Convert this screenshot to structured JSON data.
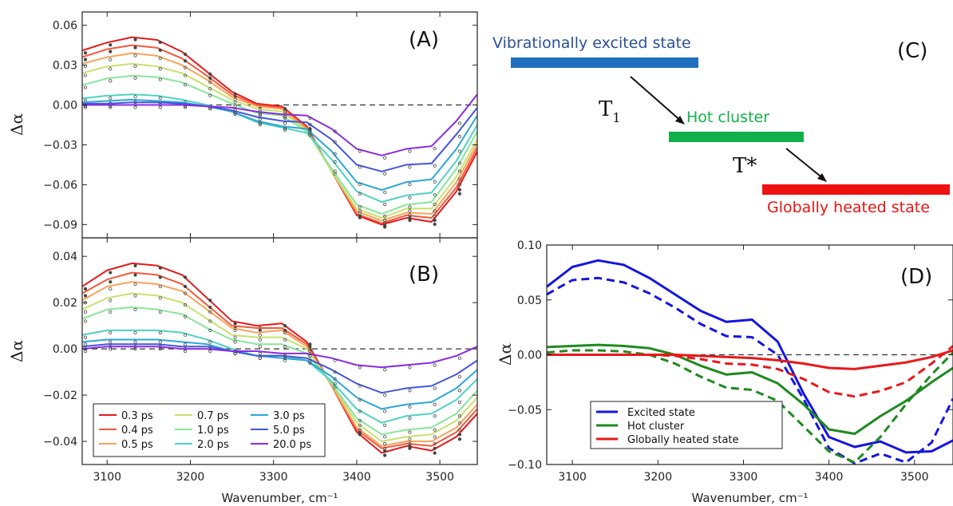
{
  "chart_data": [
    {
      "type": "line",
      "panel_label": "(A)",
      "xlabel": "",
      "ylabel": "Δα",
      "xlim": [
        3070,
        3545
      ],
      "ylim": [
        -0.1,
        0.07
      ],
      "xticks": [
        3100,
        3200,
        3300,
        3400,
        3500
      ],
      "yticks": [
        0.06,
        0.03,
        0.0,
        -0.03,
        -0.06,
        -0.09
      ],
      "ytick_labels": [
        "0.06",
        "0.03",
        "0.00",
        "−0.03",
        "−0.06",
        "−0.09"
      ],
      "x": [
        3070,
        3100,
        3130,
        3160,
        3190,
        3220,
        3250,
        3280,
        3310,
        3340,
        3370,
        3400,
        3430,
        3460,
        3490,
        3520,
        3545
      ],
      "series": [
        {
          "name": "0.3 ps",
          "color": "#e41a1c",
          "values": [
            0.041,
            0.047,
            0.051,
            0.049,
            0.04,
            0.025,
            0.01,
            0.001,
            -0.001,
            -0.016,
            -0.05,
            -0.083,
            -0.09,
            -0.085,
            -0.088,
            -0.065,
            -0.035
          ]
        },
        {
          "name": "0.4 ps",
          "color": "#f4583a",
          "values": [
            0.036,
            0.042,
            0.045,
            0.043,
            0.035,
            0.022,
            0.008,
            0.0,
            -0.002,
            -0.017,
            -0.05,
            -0.082,
            -0.089,
            -0.083,
            -0.085,
            -0.062,
            -0.032
          ]
        },
        {
          "name": "0.5 ps",
          "color": "#f9a35a",
          "values": [
            0.031,
            0.036,
            0.039,
            0.037,
            0.03,
            0.019,
            0.006,
            -0.001,
            -0.003,
            -0.018,
            -0.05,
            -0.08,
            -0.087,
            -0.081,
            -0.082,
            -0.058,
            -0.029
          ]
        },
        {
          "name": "0.7 ps",
          "color": "#c9e06e",
          "values": [
            0.024,
            0.029,
            0.031,
            0.029,
            0.024,
            0.014,
            0.004,
            -0.003,
            -0.005,
            -0.019,
            -0.05,
            -0.078,
            -0.085,
            -0.078,
            -0.078,
            -0.054,
            -0.026
          ]
        },
        {
          "name": "1.0 ps",
          "color": "#88e59a",
          "values": [
            0.015,
            0.02,
            0.022,
            0.021,
            0.017,
            0.009,
            0.001,
            -0.006,
            -0.008,
            -0.02,
            -0.048,
            -0.075,
            -0.082,
            -0.075,
            -0.073,
            -0.048,
            -0.02
          ]
        },
        {
          "name": "2.0 ps",
          "color": "#4fd1c3",
          "values": [
            0.005,
            0.007,
            0.008,
            0.007,
            0.004,
            0.0,
            -0.005,
            -0.013,
            -0.017,
            -0.021,
            -0.041,
            -0.065,
            -0.073,
            -0.068,
            -0.066,
            -0.042,
            -0.015
          ]
        },
        {
          "name": "3.0 ps",
          "color": "#2aa6d8",
          "values": [
            0.002,
            0.003,
            0.004,
            0.003,
            0.002,
            -0.001,
            -0.005,
            -0.012,
            -0.016,
            -0.018,
            -0.035,
            -0.058,
            -0.064,
            -0.058,
            -0.056,
            -0.033,
            -0.008
          ]
        },
        {
          "name": "5.0 ps",
          "color": "#4455dd",
          "values": [
            0.001,
            0.001,
            0.002,
            0.002,
            0.001,
            -0.001,
            -0.004,
            -0.009,
            -0.012,
            -0.013,
            -0.026,
            -0.045,
            -0.05,
            -0.045,
            -0.044,
            -0.022,
            -0.002
          ]
        },
        {
          "name": "20.0 ps",
          "color": "#8a2be2",
          "values": [
            0.0,
            0.0,
            0.0,
            0.0,
            0.0,
            -0.001,
            -0.002,
            -0.005,
            -0.007,
            -0.008,
            -0.018,
            -0.033,
            -0.038,
            -0.033,
            -0.031,
            -0.012,
            0.008
          ]
        }
      ]
    },
    {
      "type": "line",
      "panel_label": "(B)",
      "xlabel": "Wavenumber, cm⁻¹",
      "ylabel": "Δα",
      "xlim": [
        3070,
        3545
      ],
      "ylim": [
        -0.05,
        0.048
      ],
      "xticks": [
        3100,
        3200,
        3300,
        3400,
        3500
      ],
      "yticks": [
        0.04,
        0.02,
        0.0,
        -0.02,
        -0.04
      ],
      "ytick_labels": [
        "0.04",
        "0.02",
        "0.00",
        "−0.02",
        "−0.04"
      ],
      "x": [
        3070,
        3100,
        3130,
        3160,
        3190,
        3220,
        3250,
        3280,
        3310,
        3340,
        3370,
        3400,
        3430,
        3460,
        3490,
        3520,
        3545
      ],
      "series": [
        {
          "name": "0.3 ps",
          "color": "#e41a1c",
          "values": [
            0.027,
            0.034,
            0.037,
            0.036,
            0.032,
            0.022,
            0.012,
            0.01,
            0.011,
            0.003,
            -0.016,
            -0.036,
            -0.045,
            -0.042,
            -0.044,
            -0.038,
            -0.028
          ]
        },
        {
          "name": "0.4 ps",
          "color": "#f4583a",
          "values": [
            0.024,
            0.03,
            0.033,
            0.032,
            0.028,
            0.019,
            0.01,
            0.009,
            0.009,
            0.002,
            -0.016,
            -0.035,
            -0.043,
            -0.041,
            -0.042,
            -0.036,
            -0.026
          ]
        },
        {
          "name": "0.5 ps",
          "color": "#f9a35a",
          "values": [
            0.021,
            0.027,
            0.029,
            0.028,
            0.025,
            0.017,
            0.009,
            0.007,
            0.008,
            0.001,
            -0.016,
            -0.034,
            -0.042,
            -0.04,
            -0.04,
            -0.034,
            -0.024
          ]
        },
        {
          "name": "0.7 ps",
          "color": "#c9e06e",
          "values": [
            0.017,
            0.022,
            0.024,
            0.023,
            0.02,
            0.013,
            0.006,
            0.005,
            0.005,
            0.0,
            -0.015,
            -0.032,
            -0.04,
            -0.038,
            -0.037,
            -0.031,
            -0.021
          ]
        },
        {
          "name": "1.0 ps",
          "color": "#88e59a",
          "values": [
            0.013,
            0.017,
            0.018,
            0.017,
            0.015,
            0.009,
            0.004,
            0.002,
            0.002,
            -0.002,
            -0.015,
            -0.03,
            -0.037,
            -0.035,
            -0.034,
            -0.028,
            -0.018
          ]
        },
        {
          "name": "2.0 ps",
          "color": "#4fd1c3",
          "values": [
            0.006,
            0.008,
            0.008,
            0.008,
            0.007,
            0.004,
            0.0,
            -0.003,
            -0.003,
            -0.005,
            -0.014,
            -0.026,
            -0.032,
            -0.029,
            -0.028,
            -0.022,
            -0.013
          ]
        },
        {
          "name": "3.0 ps",
          "color": "#2aa6d8",
          "values": [
            0.003,
            0.004,
            0.004,
            0.004,
            0.003,
            0.002,
            -0.001,
            -0.003,
            -0.004,
            -0.005,
            -0.012,
            -0.021,
            -0.026,
            -0.024,
            -0.023,
            -0.017,
            -0.009
          ]
        },
        {
          "name": "5.0 ps",
          "color": "#4455dd",
          "values": [
            0.001,
            0.002,
            0.002,
            0.002,
            0.001,
            0.001,
            -0.001,
            -0.003,
            -0.003,
            -0.004,
            -0.009,
            -0.015,
            -0.019,
            -0.017,
            -0.016,
            -0.011,
            -0.005
          ]
        },
        {
          "name": "20.0 ps",
          "color": "#8a2be2",
          "values": [
            0.0,
            0.001,
            0.001,
            0.001,
            0.0,
            0.0,
            -0.001,
            -0.001,
            -0.002,
            -0.002,
            -0.004,
            -0.007,
            -0.008,
            -0.007,
            -0.006,
            -0.003,
            0.001
          ]
        }
      ],
      "legend": {
        "placement": "bottom-left",
        "columns": 3
      }
    },
    {
      "type": "line",
      "panel_label": "(D)",
      "xlabel": "Wavenumber, cm⁻¹",
      "ylabel": "Δα",
      "xlim": [
        3070,
        3545
      ],
      "ylim": [
        -0.1,
        0.1
      ],
      "xticks": [
        3100,
        3200,
        3300,
        3400,
        3500
      ],
      "yticks": [
        0.1,
        0.05,
        0.0,
        -0.05,
        -0.1
      ],
      "ytick_labels": [
        "0.10",
        "0.05",
        "0.00",
        "−0.05",
        "−0.10"
      ],
      "x": [
        3070,
        3100,
        3130,
        3160,
        3190,
        3220,
        3250,
        3280,
        3310,
        3340,
        3370,
        3400,
        3430,
        3460,
        3490,
        3520,
        3545
      ],
      "series": [
        {
          "name": "Excited state",
          "color": "#1515e0",
          "dash": false,
          "values": [
            0.062,
            0.08,
            0.086,
            0.082,
            0.07,
            0.055,
            0.04,
            0.03,
            0.032,
            0.012,
            -0.035,
            -0.075,
            -0.084,
            -0.079,
            -0.089,
            -0.088,
            -0.078
          ]
        },
        {
          "name": "",
          "color": "#1515e0",
          "dash": true,
          "values": [
            0.055,
            0.068,
            0.07,
            0.066,
            0.056,
            0.043,
            0.028,
            0.017,
            0.016,
            0.0,
            -0.04,
            -0.085,
            -0.099,
            -0.09,
            -0.098,
            -0.08,
            -0.04
          ]
        },
        {
          "name": "Hot cluster",
          "color": "#1e8a1e",
          "dash": false,
          "values": [
            0.007,
            0.008,
            0.009,
            0.008,
            0.006,
            0.0,
            -0.01,
            -0.018,
            -0.016,
            -0.026,
            -0.045,
            -0.068,
            -0.072,
            -0.056,
            -0.042,
            -0.025,
            -0.012
          ]
        },
        {
          "name": "",
          "color": "#1e8a1e",
          "dash": true,
          "values": [
            0.002,
            0.004,
            0.004,
            0.003,
            0.0,
            -0.008,
            -0.02,
            -0.03,
            -0.032,
            -0.042,
            -0.065,
            -0.088,
            -0.098,
            -0.075,
            -0.045,
            -0.018,
            0.002
          ]
        },
        {
          "name": "Globally heated state",
          "color": "#e8181a",
          "dash": false,
          "values": [
            0.0,
            0.0,
            0.0,
            0.0,
            0.0,
            0.0,
            -0.001,
            -0.002,
            -0.003,
            -0.005,
            -0.008,
            -0.012,
            -0.013,
            -0.01,
            -0.007,
            -0.002,
            0.004
          ]
        },
        {
          "name": "",
          "color": "#e8181a",
          "dash": true,
          "values": [
            0.0,
            0.0,
            0.0,
            0.0,
            0.0,
            -0.001,
            -0.004,
            -0.008,
            -0.009,
            -0.013,
            -0.022,
            -0.034,
            -0.038,
            -0.033,
            -0.025,
            -0.008,
            0.008
          ]
        }
      ],
      "legend": {
        "placement": "bottom-left"
      }
    }
  ],
  "diagram_c": {
    "panel_label": "(C)",
    "states": [
      {
        "label": "Vibrationally excited state",
        "color": "#1f6fbf",
        "text_color": "#2a4f9a"
      },
      {
        "label": "Hot cluster",
        "color": "#12b04a",
        "text_color": "#12b04a"
      },
      {
        "label": "Globally heated state",
        "color": "#ee1111",
        "text_color": "#ee1111"
      }
    ],
    "transitions": [
      {
        "symbol": "T",
        "subscript": "1"
      },
      {
        "symbol": "T*",
        "subscript": ""
      }
    ]
  }
}
